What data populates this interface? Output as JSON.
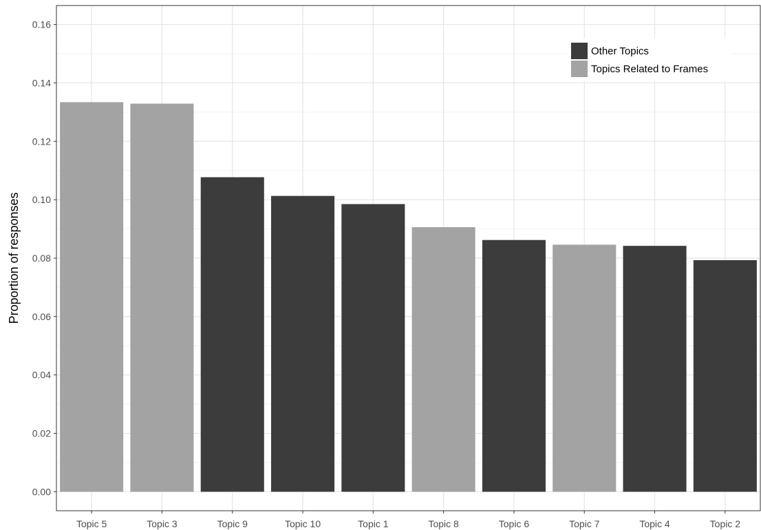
{
  "chart_data": {
    "type": "bar",
    "title": "",
    "xlabel": "",
    "ylabel": "Proportion of responses",
    "ylim": [
      -0.0065,
      0.1665
    ],
    "y_ticks": [
      "0.00",
      "0.02",
      "0.04",
      "0.06",
      "0.08",
      "0.10",
      "0.12",
      "0.14",
      "0.16"
    ],
    "categories": [
      "Topic 5",
      "Topic 3",
      "Topic 9",
      "Topic 10",
      "Topic 1",
      "Topic 8",
      "Topic 6",
      "Topic 7",
      "Topic 4",
      "Topic 2"
    ],
    "values": [
      0.1334,
      0.1329,
      0.1077,
      0.1013,
      0.0985,
      0.0906,
      0.0862,
      0.0846,
      0.0842,
      0.0793
    ],
    "groups": [
      "Topics Related to Frames",
      "Topics Related to Frames",
      "Other Topics",
      "Other Topics",
      "Other Topics",
      "Topics Related to Frames",
      "Other Topics",
      "Topics Related to Frames",
      "Other Topics",
      "Other Topics"
    ],
    "legend": {
      "position": "top-right",
      "entries": [
        {
          "name": "Other Topics",
          "color": "#3c3c3c"
        },
        {
          "name": "Topics Related to Frames",
          "color": "#a3a3a3"
        }
      ]
    },
    "grid": true,
    "colors": {
      "Other Topics": "#3c3c3c",
      "Topics Related to Frames": "#a3a3a3",
      "grid_major": "#e5e5e5",
      "grid_minor": "#f2f2f2",
      "panel_border": "#333333"
    }
  }
}
